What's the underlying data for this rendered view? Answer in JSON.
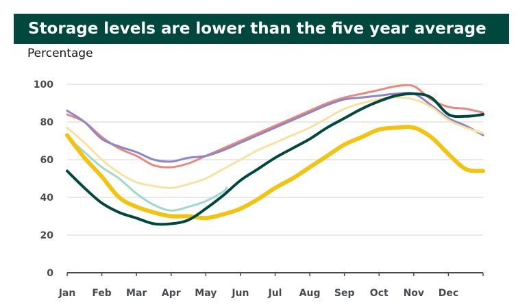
{
  "chart_data": {
    "type": "line",
    "title": "Storage levels are lower than the five year average",
    "ylabel": "Percentage",
    "xlabel": "",
    "categories": [
      "Jan",
      "Feb",
      "Mar",
      "Apr",
      "May",
      "Jun",
      "Jul",
      "Aug",
      "Sep",
      "Oct",
      "Nov",
      "Dec"
    ],
    "yticks": [
      "0",
      "20",
      "40",
      "60",
      "80",
      "100"
    ],
    "ylim": [
      0,
      100
    ],
    "grid": true,
    "legend": "none",
    "series": [
      {
        "color": "#e8877a",
        "x": [
          0,
          0.5,
          1,
          1.5,
          2,
          2.5,
          3,
          3.5,
          4,
          4.5,
          5,
          5.5,
          6,
          6.5,
          7,
          7.5,
          8,
          8.5,
          9,
          9.5,
          10,
          10.5,
          11,
          11.5,
          12
        ],
        "values": [
          84,
          80,
          72,
          66,
          62,
          57,
          56,
          58,
          62,
          66,
          70,
          74,
          78,
          82,
          86,
          90,
          93,
          95,
          97,
          99,
          99,
          92,
          88,
          87,
          85
        ]
      },
      {
        "color": "#8e85c4",
        "x": [
          0,
          0.5,
          1,
          1.5,
          2,
          2.5,
          3,
          3.5,
          4,
          4.5,
          5,
          5.5,
          6,
          6.5,
          7,
          7.5,
          8,
          8.5,
          9,
          9.5,
          10,
          10.5,
          11,
          11.5,
          12
        ],
        "values": [
          86,
          80,
          71,
          67,
          64,
          60,
          59,
          61,
          62,
          65,
          69,
          73,
          77,
          81,
          85,
          89,
          92,
          93,
          94,
          95,
          95,
          89,
          82,
          78,
          73
        ]
      },
      {
        "color": "#f7e3a1",
        "x": [
          0,
          0.5,
          1,
          1.5,
          2,
          2.5,
          3,
          3.5,
          4,
          4.5,
          5,
          5.5,
          6,
          6.5,
          7,
          7.5,
          8,
          8.5,
          9,
          9.5,
          10,
          10.5,
          11,
          11.5,
          12
        ],
        "values": [
          77,
          69,
          60,
          53,
          48,
          46,
          45,
          47,
          50,
          55,
          60,
          65,
          69,
          73,
          77,
          82,
          87,
          90,
          92,
          93,
          92,
          88,
          81,
          77,
          74
        ]
      },
      {
        "color": "#9ed9ce",
        "x": [
          0,
          0.5,
          1,
          1.5,
          2,
          2.5,
          3,
          3.5,
          4,
          4.5,
          4.6
        ],
        "values": [
          72,
          64,
          56,
          50,
          42,
          36,
          33,
          35,
          38,
          43,
          45
        ]
      },
      {
        "color": "#f2c40f",
        "x": [
          0,
          0.5,
          1,
          1.5,
          2,
          2.5,
          3,
          3.5,
          4,
          4.5,
          5,
          5.5,
          6,
          6.5,
          7,
          7.5,
          8,
          8.5,
          9,
          9.5,
          10,
          10.5,
          11,
          11.5,
          12
        ],
        "values": [
          73,
          61,
          51,
          40,
          35,
          32,
          30,
          30,
          29,
          31,
          34,
          39,
          45,
          50,
          56,
          62,
          68,
          72,
          76,
          77,
          77,
          72,
          63,
          55,
          54
        ]
      },
      {
        "color": "#00473e",
        "x": [
          0,
          0.5,
          1,
          1.5,
          2,
          2.5,
          3,
          3.5,
          4,
          4.5,
          5,
          5.5,
          6,
          6.5,
          7,
          7.5,
          8,
          8.5,
          9,
          9.5,
          10,
          10.5,
          11,
          11.5,
          12
        ],
        "values": [
          54,
          45,
          37,
          32,
          29,
          26,
          26,
          28,
          34,
          41,
          49,
          55,
          61,
          66,
          71,
          77,
          82,
          87,
          91,
          94,
          95,
          93,
          84,
          83,
          84
        ]
      }
    ]
  }
}
